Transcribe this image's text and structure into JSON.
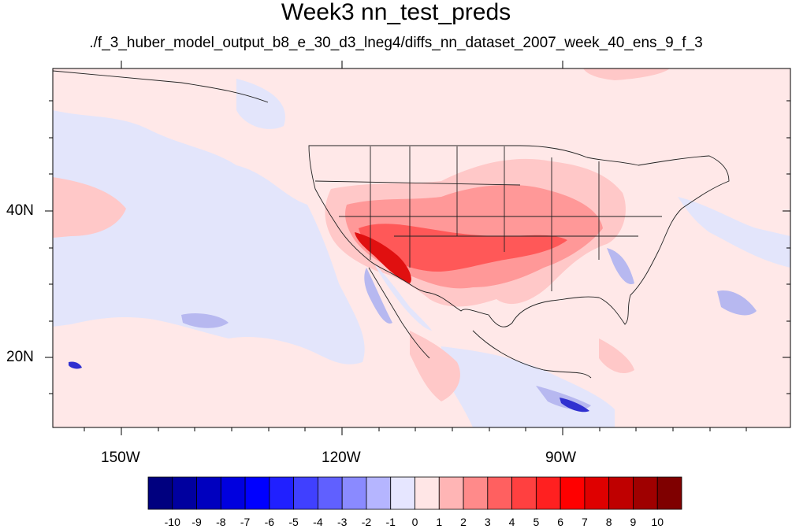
{
  "title": "Week3 nn_test_preds",
  "subtitle": "./f_3_huber_model_output_b8_e_30_d3_lneg4/diffs_nn_dataset_2007_week_40_ens_9_f_3",
  "axes": {
    "lat_labels": [
      "40N",
      "20N"
    ],
    "lon_labels": [
      "150W",
      "120W",
      "90W"
    ]
  },
  "colorbar": {
    "labels": [
      "-10",
      "-9",
      "-8",
      "-7",
      "-6",
      "-5",
      "-4",
      "-3",
      "-2",
      "-1",
      "0",
      "1",
      "2",
      "3",
      "4",
      "5",
      "6",
      "7",
      "8",
      "9",
      "10"
    ],
    "colors": [
      "#00007f",
      "#00009f",
      "#0000bf",
      "#0000df",
      "#0000ff",
      "#2020ff",
      "#4040ff",
      "#6060ff",
      "#8a8aff",
      "#b5b5ff",
      "#e6e6ff",
      "#ffe6e6",
      "#ffb5b5",
      "#ff8a8a",
      "#ff6060",
      "#ff4040",
      "#ff2020",
      "#ff0000",
      "#df0000",
      "#bf0000",
      "#9f0000",
      "#7f0000"
    ]
  },
  "palette": {
    "background_pos": "#ffe8e8",
    "light_neg": "#e3e5fb",
    "mid_neg": "#b7b8f0",
    "light_pos": "#ffc8c8",
    "mid_pos": "#ff9898",
    "strong_pos": "#ff5858",
    "deep_pos": "#e01010",
    "deep_neg": "#3030d0"
  }
}
